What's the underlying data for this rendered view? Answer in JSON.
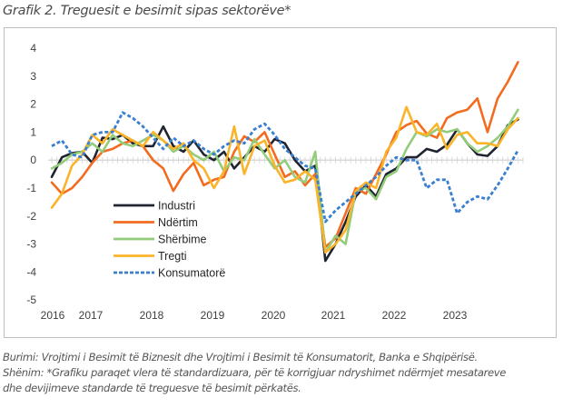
{
  "title": "Grafik 2. Treguesit e besimit sipas sektorëve*",
  "notes": [
    "Burimi: Vrojtimi i Besimit të Biznesit dhe Vrojtimi i Besimit të Konsumatorit, Banka e Shqipërisë.",
    "Shënim: *Grafiku paraqet vlera të standardizuara, për të korrigjuar ndryshimet ndërmjet mesatareve",
    "dhe devijimeve standarde të treguesve të besimit përkatës."
  ],
  "chart_data": {
    "type": "line",
    "title": "Treguesit e besimit sipas sektorëve",
    "xlabel": "",
    "ylabel": "",
    "ylim": [
      -5,
      4
    ],
    "yticks": [
      "4",
      "3",
      "2",
      "1",
      "0",
      "-1",
      "-2",
      "-3",
      "-4",
      "-5"
    ],
    "xticks": [
      "2016",
      "2017",
      "2018",
      "2019",
      "2020",
      "2021",
      "2022",
      "2023"
    ],
    "x_start": "2016-01",
    "x_step_months": 2,
    "grid": false,
    "zero_line": true,
    "legend_position": "lower-left",
    "series": [
      {
        "name": "Industri",
        "color": "#1f2430",
        "dash": "solid",
        "values": [
          -0.6,
          0.1,
          0.25,
          0.3,
          -0.1,
          0.8,
          0.75,
          0.9,
          0.6,
          0.5,
          0.5,
          1.2,
          0.5,
          0.3,
          0.7,
          0.2,
          0.0,
          0.3,
          -0.3,
          0.1,
          0.5,
          0.3,
          0.75,
          0.6,
          0.0,
          -0.4,
          -0.2,
          -3.6,
          -3.0,
          -2.2,
          -1.3,
          -0.9,
          -1.3,
          -0.5,
          -0.3,
          0.1,
          0.1,
          0.4,
          0.3,
          0.55,
          1.1,
          0.6,
          0.2,
          0.15,
          0.5,
          1.25,
          1.45
        ]
      },
      {
        "name": "Ndërtim",
        "color": "#f26b1f",
        "dash": "solid",
        "values": [
          -0.8,
          -1.2,
          -1.0,
          -0.6,
          -0.1,
          0.3,
          0.4,
          0.6,
          0.7,
          0.5,
          0.0,
          -0.3,
          -1.1,
          -0.5,
          -0.1,
          -0.9,
          -0.7,
          -0.6,
          0.3,
          0.85,
          0.65,
          1.0,
          0.2,
          -0.6,
          -0.4,
          -0.9,
          -0.5,
          -3.1,
          -2.8,
          -1.9,
          -1.0,
          -1.2,
          -0.5,
          0.2,
          1.0,
          1.25,
          1.4,
          0.95,
          0.8,
          1.5,
          1.7,
          1.8,
          2.2,
          1.0,
          2.2,
          2.8,
          3.5
        ]
      },
      {
        "name": "Shërbime",
        "color": "#93cc7a",
        "dash": "solid",
        "values": [
          -0.3,
          -0.1,
          0.2,
          0.3,
          0.6,
          0.3,
          0.9,
          0.6,
          0.5,
          0.7,
          0.9,
          0.7,
          0.3,
          0.5,
          0.2,
          0.0,
          0.3,
          -0.4,
          0.1,
          0.0,
          0.75,
          0.2,
          -0.3,
          0.0,
          -0.6,
          -0.8,
          0.3,
          -3.3,
          -2.7,
          -3.0,
          -1.1,
          -1.0,
          -1.4,
          -0.6,
          -0.4,
          0.4,
          1.0,
          0.85,
          1.1,
          1.0,
          1.1,
          0.6,
          0.3,
          0.5,
          0.8,
          1.2,
          1.8
        ]
      },
      {
        "name": "Tregti",
        "color": "#fbb429",
        "dash": "solid",
        "values": [
          -1.7,
          -1.2,
          -0.2,
          0.2,
          0.9,
          0.6,
          1.1,
          0.9,
          0.7,
          0.5,
          1.0,
          0.7,
          0.4,
          0.6,
          0.0,
          -0.3,
          -1.0,
          -0.4,
          1.2,
          -0.5,
          0.5,
          0.7,
          -0.2,
          -0.8,
          -0.7,
          -0.4,
          -0.7,
          -3.3,
          -3.0,
          -2.5,
          -1.1,
          -0.8,
          -1.0,
          0.3,
          0.8,
          1.9,
          1.0,
          0.9,
          1.3,
          0.4,
          0.9,
          1.0,
          0.6,
          0.6,
          0.5,
          1.1,
          1.5
        ]
      },
      {
        "name": "Konsumatorë",
        "color": "#3a7fd0",
        "dash": "dashed",
        "values": [
          0.5,
          0.7,
          0.2,
          0.1,
          0.9,
          1.0,
          1.0,
          1.7,
          1.5,
          1.2,
          0.8,
          0.4,
          0.8,
          0.5,
          0.7,
          0.4,
          0.2,
          0.5,
          0.7,
          0.6,
          1.1,
          1.3,
          0.9,
          0.4,
          0.1,
          -0.2,
          -0.3,
          -2.2,
          -1.8,
          -1.5,
          -1.2,
          -0.9,
          -0.6,
          -0.2,
          0.1,
          0.0,
          0.0,
          -1.0,
          -0.7,
          -0.7,
          -1.9,
          -1.5,
          -1.3,
          -1.4,
          -0.9,
          -0.3,
          0.35
        ]
      }
    ]
  }
}
